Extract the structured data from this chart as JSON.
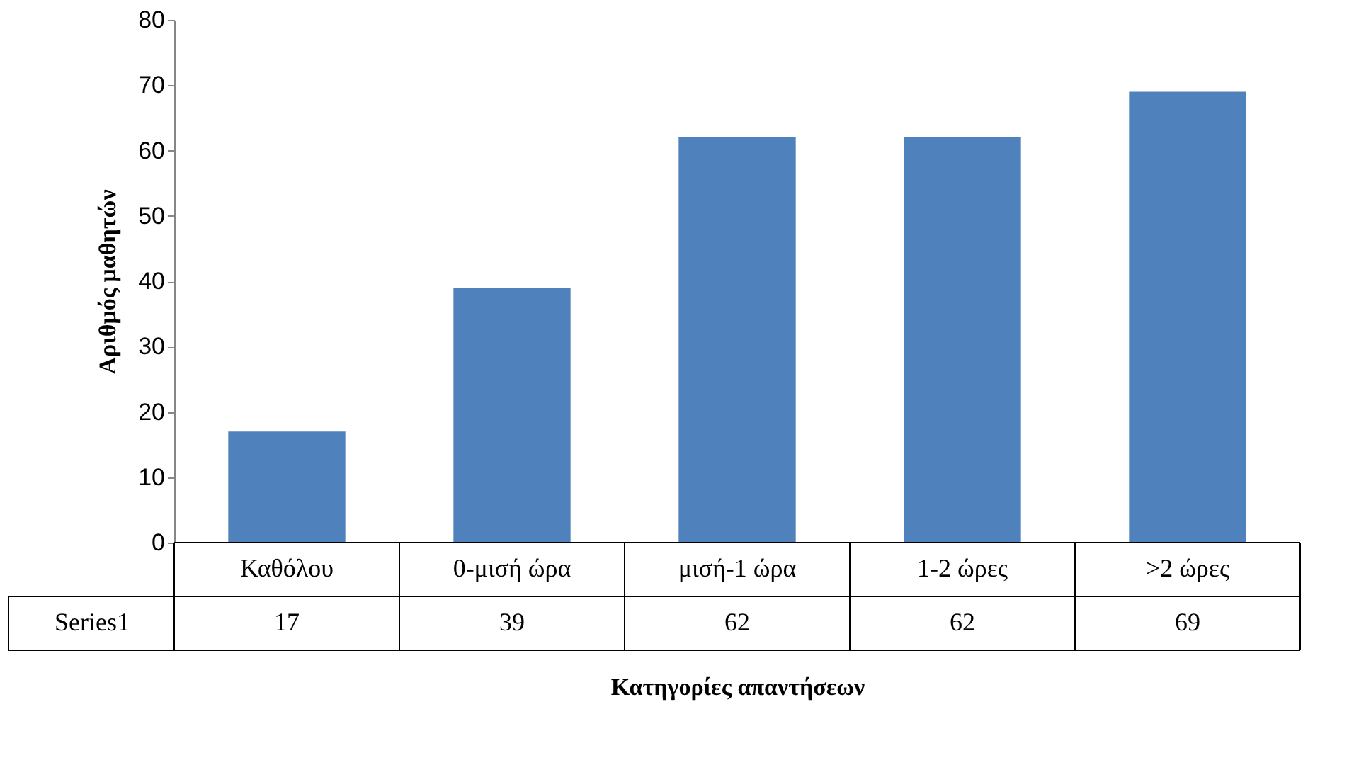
{
  "chart_data": {
    "type": "bar",
    "categories": [
      "Καθόλου",
      "0-μισή ώρα",
      "μισή-1 ώρα",
      "1-2 ώρες",
      ">2 ώρες"
    ],
    "series": [
      {
        "name": "Series1",
        "color": "#4f81bd",
        "values": [
          17,
          39,
          62,
          62,
          69
        ]
      }
    ],
    "xlabel": "Κατηγορίες απαντήσεων",
    "ylabel": "Αριθμός μαθητών",
    "ylim": [
      0,
      80
    ],
    "yticks": [
      0,
      10,
      20,
      30,
      40,
      50,
      60,
      70,
      80
    ],
    "grid": false,
    "data_labels": true
  }
}
